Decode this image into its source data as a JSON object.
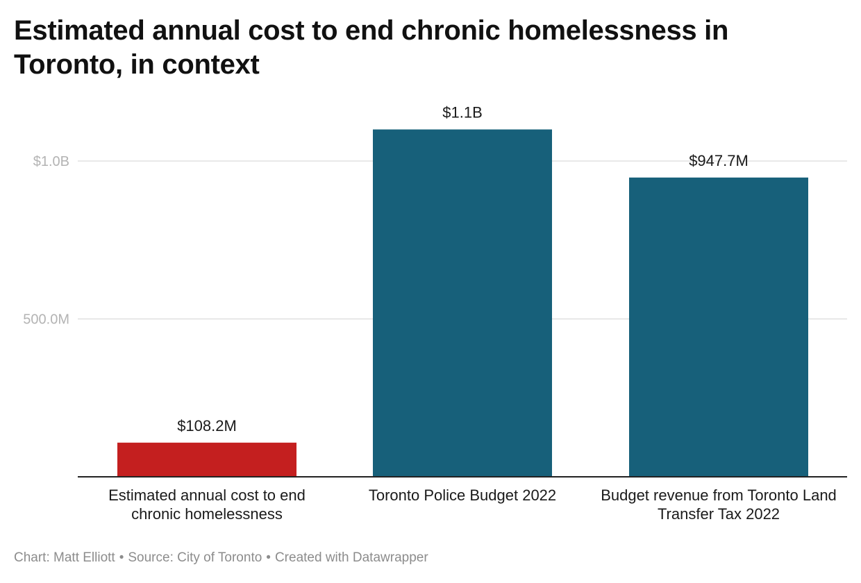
{
  "title": "Estimated annual cost to end chronic homelessness in Toronto, in context",
  "footer": {
    "chart_credit": "Chart: Matt Elliott",
    "source": "Source: City of Toronto",
    "created_with": "Created with Datawrapper",
    "separator": "•"
  },
  "colors": {
    "highlight": "#c41f1f",
    "default_bar": "#17607a",
    "grid": "#e0e0e0",
    "baseline": "#222222",
    "tick_text": "#b3b3b3"
  },
  "chart_data": {
    "type": "bar",
    "categories": [
      "Estimated annual cost to end chronic homelessness",
      "Toronto Police Budget 2022",
      "Budget revenue from Toronto Land Transfer Tax 2022"
    ],
    "values": [
      108.2,
      1100,
      947.7
    ],
    "value_unit": "million dollars",
    "data_labels": [
      "$108.2M",
      "$1.1B",
      "$947.7M"
    ],
    "bar_colors": [
      "#c41f1f",
      "#17607a",
      "#17607a"
    ],
    "yticks": [
      {
        "value": 500,
        "label": "500.0M"
      },
      {
        "value": 1000,
        "label": "$1.0B"
      }
    ],
    "ylim": [
      0,
      1100
    ],
    "grid": true,
    "legend": "none",
    "xlabel": "",
    "ylabel": ""
  }
}
